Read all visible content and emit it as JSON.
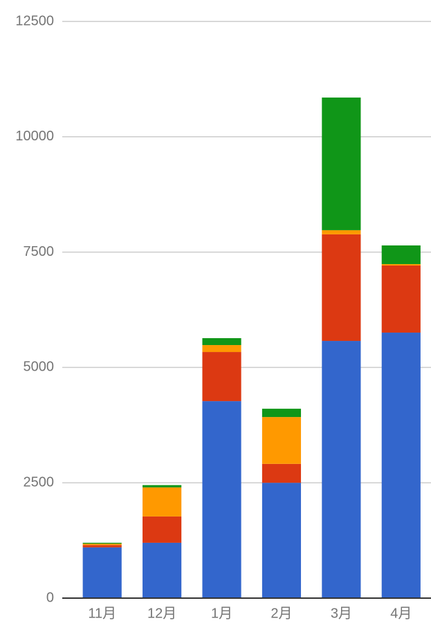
{
  "chart_data": {
    "type": "stacked-bar",
    "categories": [
      "11月",
      "12月",
      "1月",
      "2月",
      "3月",
      "4月"
    ],
    "series": [
      {
        "color": "#3366cc",
        "values": [
          1100,
          1200,
          4270,
          2500,
          5575,
          5755
        ]
      },
      {
        "color": "#dc3912",
        "values": [
          50,
          570,
          1065,
          410,
          2310,
          1455
        ]
      },
      {
        "color": "#ff9900",
        "values": [
          30,
          630,
          150,
          1015,
          90,
          30
        ]
      },
      {
        "color": "#109618",
        "values": [
          20,
          50,
          150,
          180,
          2875,
          405
        ]
      }
    ],
    "ylim": [
      0,
      12500
    ],
    "yticks": [
      0,
      2500,
      5000,
      7500,
      10000,
      12500
    ],
    "grid": true
  }
}
